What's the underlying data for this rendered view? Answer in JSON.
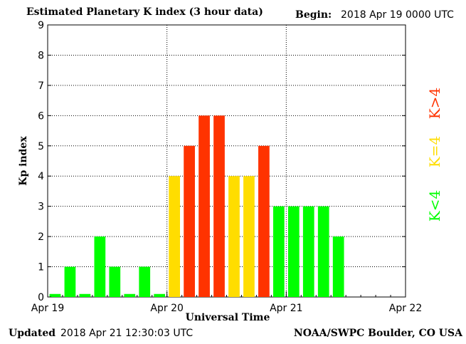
{
  "header": {
    "title": "Estimated Planetary K index (3 hour data)",
    "begin_label": "Begin:",
    "begin_value": "2018 Apr 19 0000 UTC"
  },
  "footer": {
    "updated_label": "Updated",
    "updated_value": "2018 Apr 21 12:30:03 UTC",
    "source": "NOAA/SWPC Boulder, CO USA"
  },
  "legend": {
    "high": "K>4",
    "mid": "K=4",
    "low": "K<4"
  },
  "colors": {
    "low": "#00ff00",
    "mid": "#ffdd00",
    "high": "#ff3300",
    "axis": "#000000",
    "grid": "#000000"
  },
  "chart_data": {
    "type": "bar",
    "title": "Estimated Planetary K index (3 hour data)",
    "xlabel": "Universal Time",
    "ylabel": "Kp index",
    "ylim": [
      0,
      9
    ],
    "yticks": [
      "0",
      "1",
      "2",
      "3",
      "4",
      "5",
      "6",
      "7",
      "8",
      "9"
    ],
    "xticks": [
      "Apr 19",
      "Apr 20",
      "Apr 21",
      "Apr 22"
    ],
    "grid": "dotted",
    "bars_per_day": 8,
    "values": [
      0,
      1,
      0,
      2,
      1,
      0,
      1,
      0,
      4,
      5,
      6,
      6,
      4,
      4,
      5,
      3,
      3,
      3,
      3,
      2
    ]
  }
}
